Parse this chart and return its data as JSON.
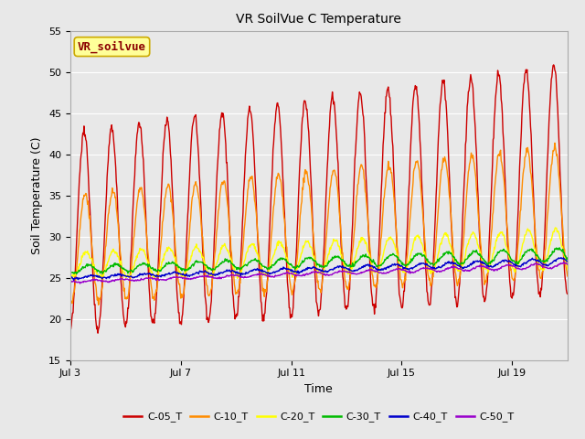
{
  "title": "VR SoilVue C Temperature",
  "xlabel": "Time",
  "ylabel": "Soil Temperature (C)",
  "ylim": [
    15,
    55
  ],
  "xlim_days": [
    3,
    21
  ],
  "fig_bg_color": "#e8e8e8",
  "plot_bg_color": "#e8e8e8",
  "annotation_text": "VR_soilvue",
  "annotation_color": "#8b0000",
  "annotation_bg": "#ffff99",
  "annotation_border": "#ccaa00",
  "legend_colors": [
    "#cc0000",
    "#ff8c00",
    "#ffff00",
    "#00bb00",
    "#0000cc",
    "#9900cc"
  ],
  "legend_labels": [
    "C-05_T",
    "C-10_T",
    "C-20_T",
    "C-30_T",
    "C-40_T",
    "C-50_T"
  ],
  "tick_labels_x": [
    "Jul 3",
    "Jul 7",
    "Jul 11",
    "Jul 15",
    "Jul 19"
  ],
  "tick_positions_x": [
    3,
    7,
    11,
    15,
    19
  ],
  "yticks": [
    15,
    20,
    25,
    30,
    35,
    40,
    45,
    50,
    55
  ],
  "grid_color": "#ffffff",
  "linewidth": 1.0
}
